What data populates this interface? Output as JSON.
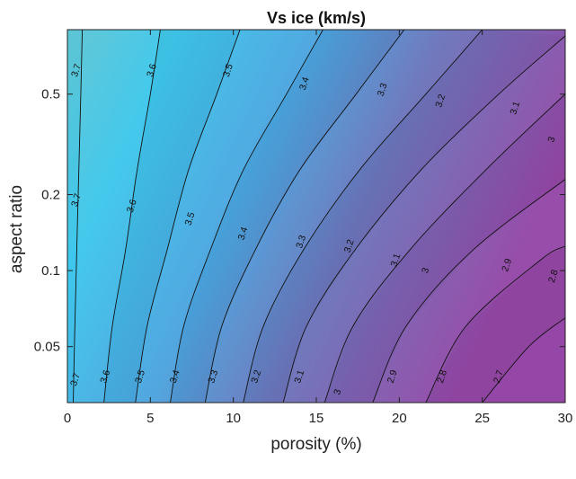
{
  "chart_data": {
    "type": "contour",
    "title": "Vs ice (km/s)",
    "xlabel": "porosity (%)",
    "ylabel": "aspect ratio",
    "xlim": [
      0,
      30
    ],
    "ylim": [
      0.03,
      0.9
    ],
    "y_scale": "log",
    "x_ticks": [
      {
        "value": 0,
        "label": "0"
      },
      {
        "value": 5,
        "label": "5"
      },
      {
        "value": 10,
        "label": "10"
      },
      {
        "value": 15,
        "label": "15"
      },
      {
        "value": 20,
        "label": "20"
      },
      {
        "value": 25,
        "label": "25"
      },
      {
        "value": 30,
        "label": "30"
      }
    ],
    "y_ticks": [
      {
        "value": 0.05,
        "label": "0.05"
      },
      {
        "value": 0.1,
        "label": "0.1"
      },
      {
        "value": 0.2,
        "label": "0.2"
      },
      {
        "value": 0.5,
        "label": "0.5"
      }
    ],
    "fill_colors": {
      "high": "#5ec5d3",
      "mid_high": "#3ec7ec",
      "mid": "#4ba5df",
      "mid_low": "#6c74ba",
      "low": "#9447a6"
    },
    "contour_levels": [
      {
        "level": 3.7,
        "label": "3.7",
        "points": [
          [
            0.35,
            0.03
          ],
          [
            0.45,
            0.06
          ],
          [
            0.6,
            0.15
          ],
          [
            0.75,
            0.35
          ],
          [
            0.9,
            0.9
          ]
        ]
      },
      {
        "level": 3.6,
        "label": "3.6",
        "points": [
          [
            2.2,
            0.03
          ],
          [
            2.7,
            0.06
          ],
          [
            3.5,
            0.12
          ],
          [
            4.2,
            0.25
          ],
          [
            5.0,
            0.5
          ],
          [
            5.6,
            0.9
          ]
        ]
      },
      {
        "level": 3.5,
        "label": "3.5",
        "points": [
          [
            4.1,
            0.03
          ],
          [
            4.8,
            0.06
          ],
          [
            6.0,
            0.12
          ],
          [
            7.3,
            0.25
          ],
          [
            9.0,
            0.5
          ],
          [
            10.4,
            0.9
          ]
        ]
      },
      {
        "level": 3.4,
        "label": "3.4",
        "points": [
          [
            6.2,
            0.03
          ],
          [
            7.0,
            0.06
          ],
          [
            8.6,
            0.12
          ],
          [
            10.6,
            0.25
          ],
          [
            13.2,
            0.5
          ],
          [
            15.4,
            0.9
          ]
        ]
      },
      {
        "level": 3.3,
        "label": "3.3",
        "points": [
          [
            8.3,
            0.03
          ],
          [
            9.3,
            0.06
          ],
          [
            11.3,
            0.12
          ],
          [
            14.0,
            0.25
          ],
          [
            17.4,
            0.5
          ],
          [
            20.3,
            0.9
          ]
        ]
      },
      {
        "level": 3.2,
        "label": "3.2",
        "points": [
          [
            10.6,
            0.03
          ],
          [
            11.8,
            0.06
          ],
          [
            14.2,
            0.12
          ],
          [
            17.6,
            0.25
          ],
          [
            21.6,
            0.5
          ],
          [
            25.0,
            0.9
          ]
        ]
      },
      {
        "level": 3.1,
        "label": "3.1",
        "points": [
          [
            13.0,
            0.03
          ],
          [
            14.4,
            0.06
          ],
          [
            17.3,
            0.12
          ],
          [
            21.3,
            0.25
          ],
          [
            26.0,
            0.5
          ],
          [
            30.0,
            0.85
          ]
        ]
      },
      {
        "level": 3,
        "label": "3",
        "points": [
          [
            15.5,
            0.03
          ],
          [
            17.2,
            0.06
          ],
          [
            20.6,
            0.12
          ],
          [
            25.2,
            0.25
          ],
          [
            30.0,
            0.5
          ]
        ]
      },
      {
        "level": 2.9,
        "label": "2.9",
        "points": [
          [
            18.4,
            0.03
          ],
          [
            20.4,
            0.06
          ],
          [
            24.4,
            0.12
          ],
          [
            30.0,
            0.23
          ]
        ]
      },
      {
        "level": 2.8,
        "label": "2.8",
        "points": [
          [
            21.6,
            0.03
          ],
          [
            24.0,
            0.06
          ],
          [
            28.5,
            0.11
          ],
          [
            30.0,
            0.125
          ]
        ]
      },
      {
        "level": 2.7,
        "label": "2.7",
        "points": [
          [
            25.0,
            0.03
          ],
          [
            27.8,
            0.05
          ],
          [
            30.0,
            0.065
          ]
        ]
      }
    ],
    "contour_labels": [
      {
        "text": "3.7",
        "x": 0.55,
        "y": 0.62
      },
      {
        "text": "3.6",
        "x": 5.1,
        "y": 0.62
      },
      {
        "text": "3.5",
        "x": 9.7,
        "y": 0.62
      },
      {
        "text": "3.4",
        "x": 14.3,
        "y": 0.55
      },
      {
        "text": "3.3",
        "x": 19.0,
        "y": 0.52
      },
      {
        "text": "3.2",
        "x": 22.5,
        "y": 0.47
      },
      {
        "text": "3.1",
        "x": 27.0,
        "y": 0.44
      },
      {
        "text": "3",
        "x": 29.2,
        "y": 0.33
      },
      {
        "text": "3.7",
        "x": 0.55,
        "y": 0.19
      },
      {
        "text": "3.6",
        "x": 3.9,
        "y": 0.18
      },
      {
        "text": "3.5",
        "x": 7.4,
        "y": 0.16
      },
      {
        "text": "3.4",
        "x": 10.6,
        "y": 0.14
      },
      {
        "text": "3.3",
        "x": 14.1,
        "y": 0.13
      },
      {
        "text": "3.2",
        "x": 17.0,
        "y": 0.125
      },
      {
        "text": "3.1",
        "x": 19.8,
        "y": 0.11
      },
      {
        "text": "3",
        "x": 21.6,
        "y": 0.1
      },
      {
        "text": "2.9",
        "x": 26.5,
        "y": 0.105
      },
      {
        "text": "2.8",
        "x": 29.3,
        "y": 0.095
      },
      {
        "text": "3.7",
        "x": 0.5,
        "y": 0.037
      },
      {
        "text": "3.6",
        "x": 2.3,
        "y": 0.038
      },
      {
        "text": "3.5",
        "x": 4.4,
        "y": 0.038
      },
      {
        "text": "3.4",
        "x": 6.5,
        "y": 0.038
      },
      {
        "text": "3.3",
        "x": 8.8,
        "y": 0.038
      },
      {
        "text": "3.2",
        "x": 11.4,
        "y": 0.038
      },
      {
        "text": "3.1",
        "x": 14.0,
        "y": 0.038
      },
      {
        "text": "3",
        "x": 16.3,
        "y": 0.033
      },
      {
        "text": "2.9",
        "x": 19.6,
        "y": 0.038
      },
      {
        "text": "2.8",
        "x": 22.6,
        "y": 0.038
      },
      {
        "text": "2.7",
        "x": 26.0,
        "y": 0.038
      }
    ]
  }
}
